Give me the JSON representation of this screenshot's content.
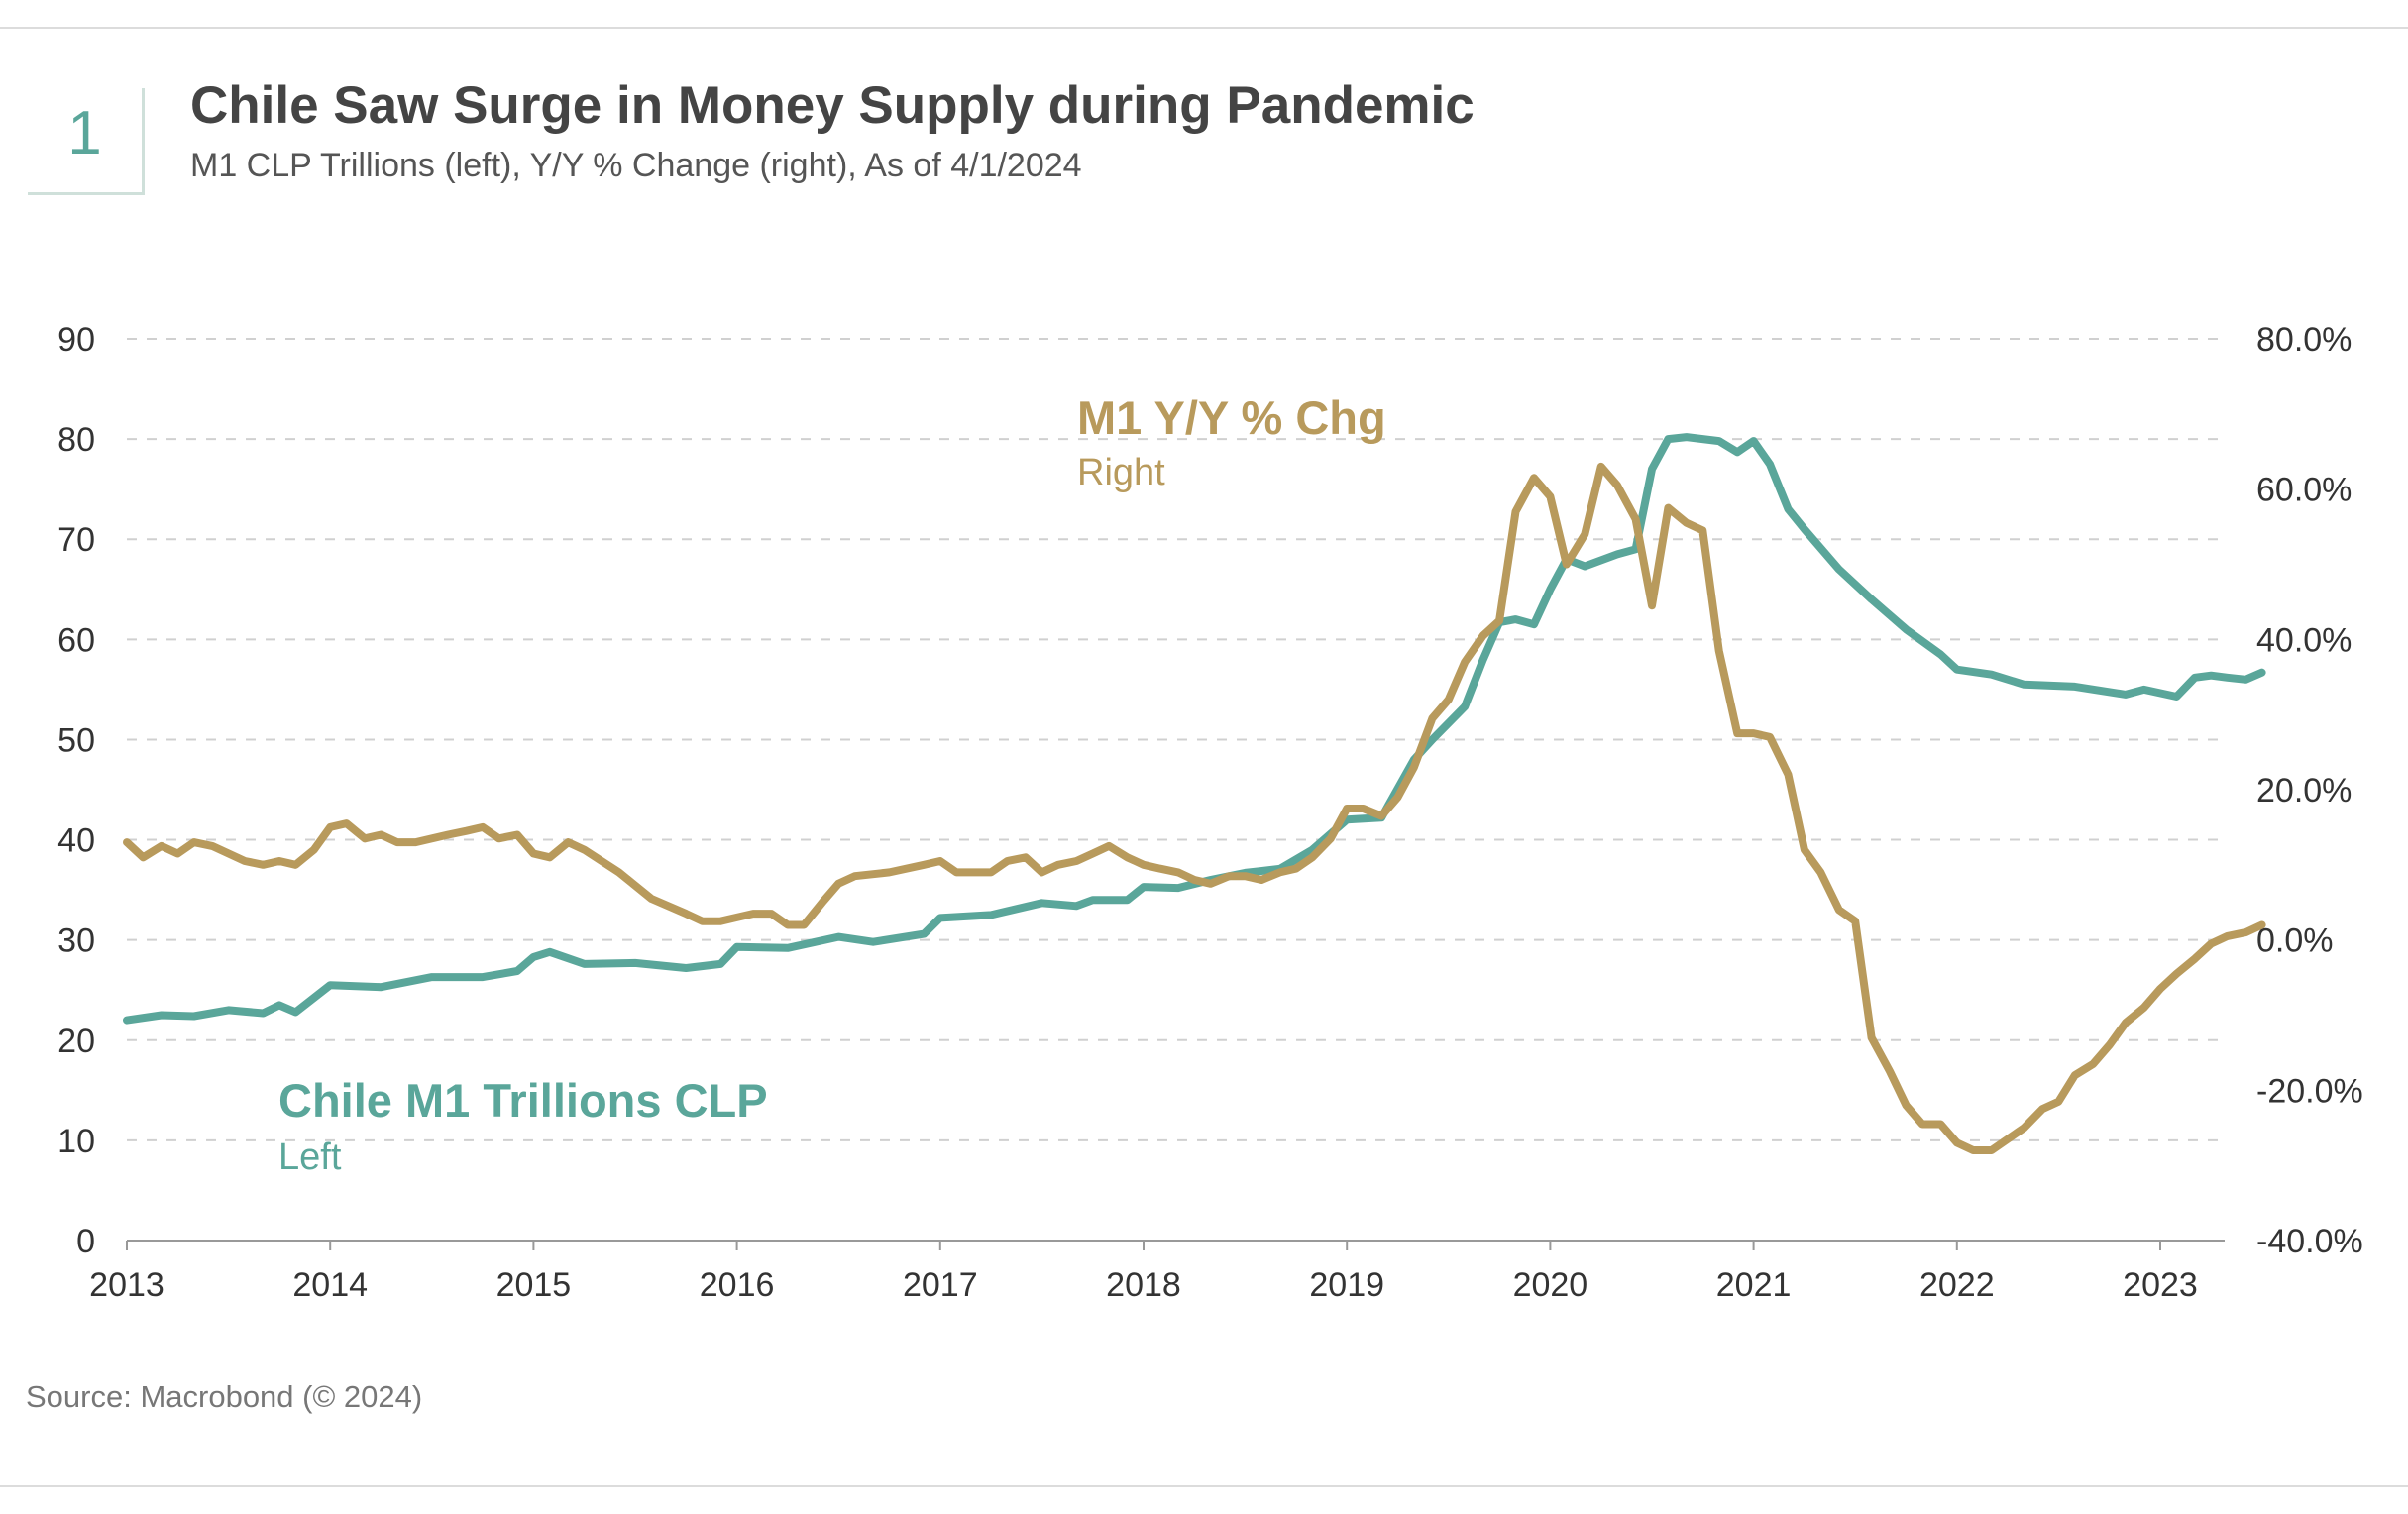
{
  "header": {
    "number": "1",
    "title": "Chile Saw Surge in Money Supply during Pandemic",
    "subtitle": "M1 CLP Trillions (left), Y/Y % Change (right), As of 4/1/2024"
  },
  "footer": {
    "source": "Source: Macrobond (© 2024)"
  },
  "colors": {
    "m1": "#5aa69a",
    "yoy": "#b89a5c",
    "grid": "#d0d0d0",
    "axis": "#999999"
  },
  "chart_data": {
    "type": "line",
    "x_ticks": [
      "2013",
      "2014",
      "2015",
      "2016",
      "2017",
      "2018",
      "2019",
      "2020",
      "2021",
      "2022",
      "2023"
    ],
    "y_left_ticks": [
      "0",
      "10",
      "20",
      "30",
      "40",
      "50",
      "60",
      "70",
      "80",
      "90"
    ],
    "y_right_ticks": [
      "-40.0%",
      "-20.0%",
      "0.0%",
      "20.0%",
      "40.0%",
      "60.0%",
      "80.0%"
    ],
    "ylim_left": [
      0,
      90
    ],
    "ylim_right": [
      -40,
      80
    ],
    "xlim": [
      2013,
      2023.33
    ],
    "grid": true,
    "series": [
      {
        "name": "Chile M1 Trillions CLP",
        "name_sub": "Left",
        "axis": "left",
        "points": [
          [
            2013.0,
            22.0
          ],
          [
            2013.17,
            22.5
          ],
          [
            2013.33,
            22.4
          ],
          [
            2013.5,
            23.0
          ],
          [
            2013.67,
            22.7
          ],
          [
            2013.75,
            23.5
          ],
          [
            2013.83,
            22.8
          ],
          [
            2014.0,
            25.5
          ],
          [
            2014.25,
            25.3
          ],
          [
            2014.5,
            26.3
          ],
          [
            2014.75,
            26.3
          ],
          [
            2014.92,
            26.9
          ],
          [
            2015.0,
            28.3
          ],
          [
            2015.08,
            28.8
          ],
          [
            2015.25,
            27.6
          ],
          [
            2015.5,
            27.7
          ],
          [
            2015.75,
            27.2
          ],
          [
            2015.92,
            27.6
          ],
          [
            2016.0,
            29.3
          ],
          [
            2016.25,
            29.2
          ],
          [
            2016.5,
            30.3
          ],
          [
            2016.67,
            29.8
          ],
          [
            2016.92,
            30.6
          ],
          [
            2017.0,
            32.2
          ],
          [
            2017.25,
            32.5
          ],
          [
            2017.5,
            33.7
          ],
          [
            2017.67,
            33.4
          ],
          [
            2017.75,
            34.0
          ],
          [
            2017.92,
            34.0
          ],
          [
            2018.0,
            35.3
          ],
          [
            2018.17,
            35.2
          ],
          [
            2018.33,
            36.0
          ],
          [
            2018.5,
            36.7
          ],
          [
            2018.67,
            37.1
          ],
          [
            2018.83,
            39.0
          ],
          [
            2019.0,
            42.0
          ],
          [
            2019.17,
            42.2
          ],
          [
            2019.33,
            48.0
          ],
          [
            2019.42,
            50.0
          ],
          [
            2019.58,
            53.3
          ],
          [
            2019.67,
            58.0
          ],
          [
            2019.75,
            61.7
          ],
          [
            2019.83,
            62.0
          ],
          [
            2019.92,
            61.5
          ],
          [
            2020.0,
            65.0
          ],
          [
            2020.08,
            68.0
          ],
          [
            2020.17,
            67.3
          ],
          [
            2020.33,
            68.5
          ],
          [
            2020.42,
            69.0
          ],
          [
            2020.5,
            77.0
          ],
          [
            2020.58,
            80.0
          ],
          [
            2020.67,
            80.2
          ],
          [
            2020.83,
            79.8
          ],
          [
            2020.92,
            78.7
          ],
          [
            2021.0,
            79.8
          ],
          [
            2021.08,
            77.5
          ],
          [
            2021.17,
            73.0
          ],
          [
            2021.25,
            71.0
          ],
          [
            2021.42,
            67.0
          ],
          [
            2021.58,
            64.0
          ],
          [
            2021.75,
            61.0
          ],
          [
            2021.92,
            58.5
          ],
          [
            2022.0,
            57.0
          ],
          [
            2022.17,
            56.5
          ],
          [
            2022.33,
            55.5
          ],
          [
            2022.58,
            55.3
          ],
          [
            2022.83,
            54.5
          ],
          [
            2022.92,
            55.0
          ],
          [
            2023.08,
            54.3
          ],
          [
            2023.17,
            56.2
          ],
          [
            2023.25,
            56.4
          ],
          [
            2023.33,
            56.2
          ],
          [
            2023.42,
            56.0
          ],
          [
            2023.5,
            56.7
          ]
        ]
      },
      {
        "name": "M1 Y/Y % Chg",
        "name_sub": "Right",
        "axis": "right",
        "points": [
          [
            2013.0,
            13.0
          ],
          [
            2013.08,
            11.0
          ],
          [
            2013.17,
            12.5
          ],
          [
            2013.25,
            11.5
          ],
          [
            2013.33,
            13.0
          ],
          [
            2013.42,
            12.5
          ],
          [
            2013.58,
            10.5
          ],
          [
            2013.67,
            10.0
          ],
          [
            2013.75,
            10.5
          ],
          [
            2013.83,
            10.0
          ],
          [
            2013.92,
            12.0
          ],
          [
            2014.0,
            15.0
          ],
          [
            2014.08,
            15.5
          ],
          [
            2014.17,
            13.5
          ],
          [
            2014.25,
            14.0
          ],
          [
            2014.33,
            13.0
          ],
          [
            2014.42,
            13.0
          ],
          [
            2014.58,
            14.0
          ],
          [
            2014.67,
            14.5
          ],
          [
            2014.75,
            15.0
          ],
          [
            2014.83,
            13.5
          ],
          [
            2014.92,
            14.0
          ],
          [
            2015.0,
            11.5
          ],
          [
            2015.08,
            11.0
          ],
          [
            2015.17,
            13.0
          ],
          [
            2015.25,
            12.0
          ],
          [
            2015.42,
            9.0
          ],
          [
            2015.58,
            5.5
          ],
          [
            2015.75,
            3.5
          ],
          [
            2015.83,
            2.5
          ],
          [
            2015.92,
            2.5
          ],
          [
            2016.0,
            3.0
          ],
          [
            2016.08,
            3.5
          ],
          [
            2016.17,
            3.5
          ],
          [
            2016.25,
            2.0
          ],
          [
            2016.33,
            2.0
          ],
          [
            2016.42,
            5.0
          ],
          [
            2016.5,
            7.5
          ],
          [
            2016.58,
            8.5
          ],
          [
            2016.75,
            9.0
          ],
          [
            2016.92,
            10.0
          ],
          [
            2017.0,
            10.5
          ],
          [
            2017.08,
            9.0
          ],
          [
            2017.25,
            9.0
          ],
          [
            2017.33,
            10.5
          ],
          [
            2017.42,
            11.0
          ],
          [
            2017.5,
            9.0
          ],
          [
            2017.58,
            10.0
          ],
          [
            2017.67,
            10.5
          ],
          [
            2017.75,
            11.5
          ],
          [
            2017.83,
            12.5
          ],
          [
            2017.92,
            11.0
          ],
          [
            2018.0,
            10.0
          ],
          [
            2018.08,
            9.5
          ],
          [
            2018.17,
            9.0
          ],
          [
            2018.25,
            8.0
          ],
          [
            2018.33,
            7.5
          ],
          [
            2018.42,
            8.5
          ],
          [
            2018.5,
            8.5
          ],
          [
            2018.58,
            8.0
          ],
          [
            2018.67,
            9.0
          ],
          [
            2018.75,
            9.5
          ],
          [
            2018.83,
            11.0
          ],
          [
            2018.92,
            13.5
          ],
          [
            2019.0,
            17.5
          ],
          [
            2019.08,
            17.5
          ],
          [
            2019.17,
            16.5
          ],
          [
            2019.25,
            19.0
          ],
          [
            2019.33,
            23.0
          ],
          [
            2019.42,
            29.5
          ],
          [
            2019.5,
            32.0
          ],
          [
            2019.58,
            37.0
          ],
          [
            2019.67,
            40.5
          ],
          [
            2019.75,
            42.5
          ],
          [
            2019.83,
            57.0
          ],
          [
            2019.92,
            61.5
          ],
          [
            2020.0,
            59.0
          ],
          [
            2020.08,
            50.0
          ],
          [
            2020.17,
            54.0
          ],
          [
            2020.25,
            63.0
          ],
          [
            2020.33,
            60.5
          ],
          [
            2020.42,
            56.0
          ],
          [
            2020.5,
            44.5
          ],
          [
            2020.58,
            57.5
          ],
          [
            2020.67,
            55.5
          ],
          [
            2020.75,
            54.5
          ],
          [
            2020.83,
            38.5
          ],
          [
            2020.92,
            27.5
          ],
          [
            2021.0,
            27.5
          ],
          [
            2021.08,
            27.0
          ],
          [
            2021.17,
            22.0
          ],
          [
            2021.25,
            12.0
          ],
          [
            2021.33,
            9.0
          ],
          [
            2021.42,
            4.0
          ],
          [
            2021.5,
            2.5
          ],
          [
            2021.58,
            -13.0
          ],
          [
            2021.67,
            -17.5
          ],
          [
            2021.75,
            -22.0
          ],
          [
            2021.83,
            -24.5
          ],
          [
            2021.92,
            -24.5
          ],
          [
            2022.0,
            -27.0
          ],
          [
            2022.08,
            -28.0
          ],
          [
            2022.17,
            -28.0
          ],
          [
            2022.25,
            -26.5
          ],
          [
            2022.33,
            -25.0
          ],
          [
            2022.42,
            -22.5
          ],
          [
            2022.5,
            -21.5
          ],
          [
            2022.58,
            -18.0
          ],
          [
            2022.67,
            -16.5
          ],
          [
            2022.75,
            -14.0
          ],
          [
            2022.83,
            -11.0
          ],
          [
            2022.92,
            -9.0
          ],
          [
            2023.0,
            -6.5
          ],
          [
            2023.08,
            -4.5
          ],
          [
            2023.17,
            -2.5
          ],
          [
            2023.25,
            -0.5
          ],
          [
            2023.33,
            0.5
          ],
          [
            2023.42,
            1.0
          ],
          [
            2023.5,
            2.0
          ]
        ]
      }
    ]
  }
}
